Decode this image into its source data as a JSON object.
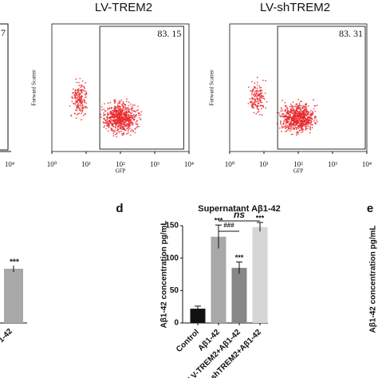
{
  "chart_data": [
    {
      "type": "flow",
      "title": "LV-TREM2",
      "xlabel": "GFP",
      "ylabel": "Forward Scatter",
      "log_x": true,
      "xlim": [
        1,
        10000
      ],
      "xticks": [
        {
          "value": 1,
          "label": "10⁰"
        },
        {
          "value": 10,
          "label": "10¹"
        },
        {
          "value": 100,
          "label": "10²"
        },
        {
          "value": 1000,
          "label": "10³"
        },
        {
          "value": 10000,
          "label": "10⁴"
        }
      ],
      "gate_xlim": [
        25,
        7000
      ],
      "gate_value": 83.15,
      "gate_label": "83. 15",
      "color": "#e8262b"
    },
    {
      "type": "flow",
      "title": "LV-shTREM2",
      "xlabel": "GFP",
      "ylabel": "Forward Scatter",
      "log_x": true,
      "xlim": [
        1,
        10000
      ],
      "xticks": [
        {
          "value": 1,
          "label": "10⁰"
        },
        {
          "value": 10,
          "label": "10¹"
        },
        {
          "value": 100,
          "label": "10²"
        },
        {
          "value": 1000,
          "label": "10³"
        },
        {
          "value": 10000,
          "label": "10⁴"
        }
      ],
      "gate_xlim": [
        25,
        9000
      ],
      "gate_value": 83.31,
      "gate_label": "83. 31",
      "color": "#e8262b"
    },
    {
      "type": "bar",
      "panel": "d",
      "title": "Supernatant Aβ1-42",
      "ylabel": "Aβ1-42 concentration pg/mL",
      "categories": [
        "Control",
        "Aβ1-42",
        "LV-TREM2+Aβ1-42",
        "LV-shTREM2+Aβ1-42"
      ],
      "values": [
        22,
        133,
        85,
        148
      ],
      "errors": [
        4,
        18,
        9,
        7
      ],
      "colors": [
        "#111111",
        "#a8a8a8",
        "#878787",
        "#d6d6d6"
      ],
      "significance": [
        null,
        "***",
        "***",
        "***"
      ],
      "comparisons": [
        {
          "text": "###",
          "between": [
            1,
            2
          ]
        },
        {
          "text": "ns",
          "between": [
            1,
            3
          ]
        }
      ],
      "ylim": [
        0,
        150
      ],
      "yticks": [
        0,
        50,
        100,
        150
      ]
    }
  ],
  "fragments": {
    "left_gate": "7",
    "left_tick": "10⁴",
    "left_stars": "***",
    "left_category": "1-42",
    "right_panel": "e",
    "right_ylabel": "Aβ1-42 concentration pg/mL"
  }
}
